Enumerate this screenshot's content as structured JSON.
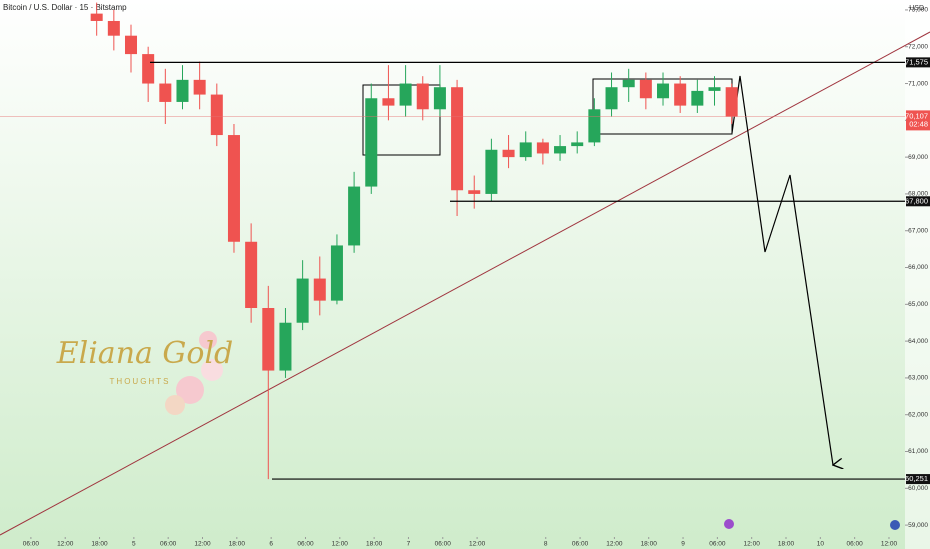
{
  "chart_data": {
    "type": "candlestick",
    "title": "Bitcoin / U.S. Dollar · 15 · Bitstamp",
    "currency": "USD",
    "watermark": {
      "name": "Eliana Gold",
      "tagline": "THOUGHTS"
    },
    "up_color": "#26a65b",
    "down_color": "#ef5350",
    "x": [
      17.5,
      20.5,
      23.5,
      26.5,
      29.5,
      32.5,
      35.5,
      38.5,
      41.5,
      44.5,
      47.5,
      50.5,
      53.5,
      56.5,
      59.5,
      62.5,
      65.5,
      68.5,
      71.5,
      74.5,
      77.5,
      80.5,
      83.5,
      86.5,
      89.5,
      92.5,
      95.5,
      98.5,
      101.5,
      104.5,
      107.5,
      110.5,
      113.5,
      116.5,
      119.5,
      122.5,
      125.5,
      128.5
    ],
    "open": [
      72900,
      72700,
      72300,
      71800,
      71000,
      70500,
      71100,
      70700,
      69600,
      66700,
      64900,
      63200,
      64500,
      65700,
      65100,
      66600,
      68200,
      70600,
      70400,
      71000,
      70300,
      70900,
      68100,
      68000,
      69200,
      69000,
      69400,
      69100,
      69300,
      69400,
      70300,
      70900,
      71100,
      70600,
      71000,
      70400,
      70800,
      70900
    ],
    "high": [
      73200,
      73000,
      72600,
      72000,
      71400,
      71500,
      71600,
      71000,
      69900,
      67200,
      65500,
      64900,
      66200,
      66300,
      66900,
      68600,
      71000,
      71500,
      71500,
      71200,
      71500,
      71100,
      68500,
      69500,
      69600,
      69700,
      69500,
      69600,
      69700,
      70600,
      71300,
      71400,
      71300,
      71300,
      71200,
      71100,
      71200,
      71000
    ],
    "low": [
      72300,
      71900,
      71300,
      70500,
      69900,
      70300,
      70300,
      69300,
      66400,
      64500,
      60251,
      63000,
      64300,
      64700,
      65000,
      66400,
      68000,
      70000,
      70100,
      70000,
      70100,
      67400,
      67600,
      67800,
      68700,
      68900,
      68800,
      68900,
      69100,
      69300,
      70100,
      70500,
      70300,
      70400,
      70200,
      70200,
      70400,
      69900
    ],
    "close": [
      72700,
      72300,
      71800,
      71000,
      70500,
      71100,
      70700,
      69600,
      66700,
      64900,
      63200,
      64500,
      65700,
      65100,
      66600,
      68200,
      70600,
      70400,
      71000,
      70300,
      70900,
      68100,
      68000,
      69200,
      69000,
      69400,
      69100,
      69300,
      69400,
      70300,
      70900,
      71100,
      70600,
      71000,
      70400,
      70800,
      70900,
      70100
    ],
    "xlim": [
      0.6,
      158.8
    ],
    "xticks": [
      {
        "value": 6,
        "label": "06:00"
      },
      {
        "value": 12,
        "label": "12:00"
      },
      {
        "value": 18,
        "label": "18:00"
      },
      {
        "value": 24,
        "label": "5"
      },
      {
        "value": 30,
        "label": "06:00"
      },
      {
        "value": 36,
        "label": "12:00"
      },
      {
        "value": 42,
        "label": "18:00"
      },
      {
        "value": 48,
        "label": "6"
      },
      {
        "value": 54,
        "label": "06:00"
      },
      {
        "value": 60,
        "label": "12:00"
      },
      {
        "value": 66,
        "label": "18:00"
      },
      {
        "value": 72,
        "label": "7"
      },
      {
        "value": 78,
        "label": "06:00"
      },
      {
        "value": 84,
        "label": "12:00"
      },
      {
        "value": 96,
        "label": "8"
      },
      {
        "value": 102,
        "label": "06:00"
      },
      {
        "value": 108,
        "label": "12:00"
      },
      {
        "value": 114,
        "label": "18:00"
      },
      {
        "value": 120,
        "label": "9"
      },
      {
        "value": 126,
        "label": "06:00"
      },
      {
        "value": 132,
        "label": "12:00"
      },
      {
        "value": 138,
        "label": "18:00"
      },
      {
        "value": 144,
        "label": "10"
      },
      {
        "value": 150,
        "label": "06:00"
      },
      {
        "value": 156,
        "label": "12:00"
      }
    ],
    "ylim": [
      58840,
      73270
    ],
    "yticks": [
      {
        "value": 73000,
        "label": "73,000"
      },
      {
        "value": 72000,
        "label": "72,000"
      },
      {
        "value": 71000,
        "label": "71,000"
      },
      {
        "value": 70000,
        "label": "70,000"
      },
      {
        "value": 69000,
        "label": "69,000"
      },
      {
        "value": 68000,
        "label": "68,000"
      },
      {
        "value": 67000,
        "label": "67,000"
      },
      {
        "value": 66000,
        "label": "66,000"
      },
      {
        "value": 65000,
        "label": "65,000"
      },
      {
        "value": 64000,
        "label": "64,000"
      },
      {
        "value": 63000,
        "label": "63,000"
      },
      {
        "value": 62000,
        "label": "62,000"
      },
      {
        "value": 61000,
        "label": "61,000"
      },
      {
        "value": 60000,
        "label": "60,000"
      },
      {
        "value": 59000,
        "label": "59,000"
      }
    ],
    "levels": [
      {
        "value": 71575,
        "label": "71,575"
      },
      {
        "value": 67800,
        "label": "67,800"
      },
      {
        "value": 60251,
        "label": "60,251"
      }
    ],
    "last_price": {
      "value": 70107,
      "label": "70,107"
    },
    "countdown": "02:48"
  }
}
